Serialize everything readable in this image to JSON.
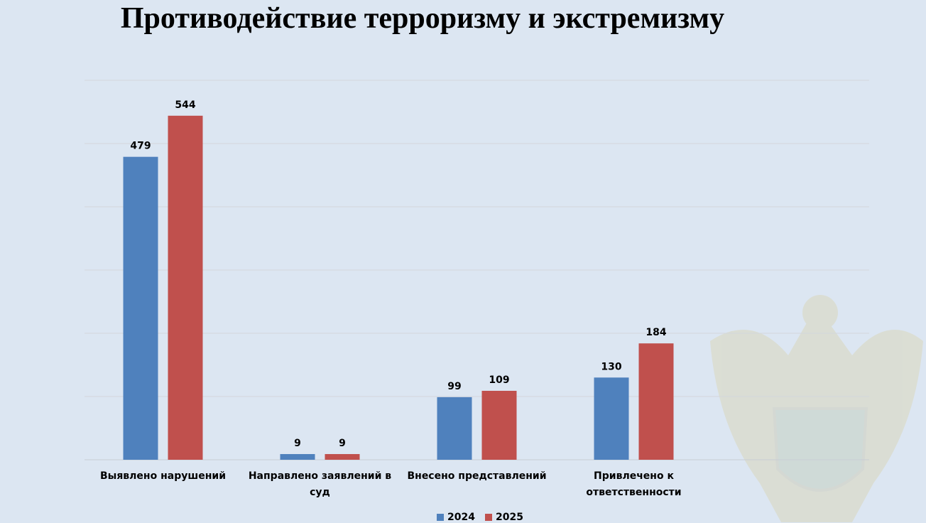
{
  "chart_data": {
    "type": "bar",
    "title": "Противодействие терроризму и экстремизму",
    "categories": [
      "Выявлено нарушений",
      "Направлено заявлений в суд",
      "Внесено представлений",
      "Привлечено к ответственности"
    ],
    "series": [
      {
        "name": "2024",
        "values": [
          479,
          9,
          99,
          130
        ],
        "color": "#4f81bd"
      },
      {
        "name": "2025",
        "values": [
          544,
          9,
          109,
          184
        ],
        "color": "#c0504d"
      }
    ],
    "ylim": [
      0,
      600
    ],
    "ytick_step": 100,
    "grid": true,
    "yaxis_labels_shown": false,
    "data_labels": true,
    "legend_position": "bottom",
    "background_color": "#dce6f2",
    "watermark": "prosecutor-office-emblem"
  }
}
